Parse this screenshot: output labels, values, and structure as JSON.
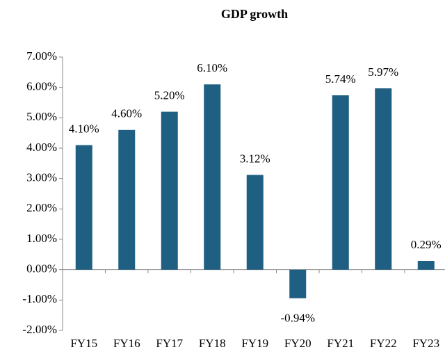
{
  "chart_data": {
    "type": "bar",
    "title": "GDP growth",
    "categories": [
      "FY15",
      "FY16",
      "FY17",
      "FY18",
      "FY19",
      "FY20",
      "FY21",
      "FY22",
      "FY23"
    ],
    "values": [
      4.1,
      4.6,
      5.2,
      6.1,
      3.12,
      -0.94,
      5.74,
      5.97,
      0.29
    ],
    "value_labels": [
      "4.10%",
      "4.60%",
      "5.20%",
      "6.10%",
      "3.12%",
      "-0.94%",
      "5.74%",
      "5.97%",
      "0.29%"
    ],
    "color": "#1f5f82",
    "ylim": [
      -2,
      7
    ],
    "yticks": [
      {
        "value": -2,
        "label": "-2.00%"
      },
      {
        "value": -1,
        "label": "-1.00%"
      },
      {
        "value": 0,
        "label": "0.00%"
      },
      {
        "value": 1,
        "label": "1.00%"
      },
      {
        "value": 2,
        "label": "2.00%"
      },
      {
        "value": 3,
        "label": "3.00%"
      },
      {
        "value": 4,
        "label": "4.00%"
      },
      {
        "value": 5,
        "label": "5.00%"
      },
      {
        "value": 6,
        "label": "6.00%"
      },
      {
        "value": 7,
        "label": "7.00%"
      }
    ],
    "grid": false
  }
}
